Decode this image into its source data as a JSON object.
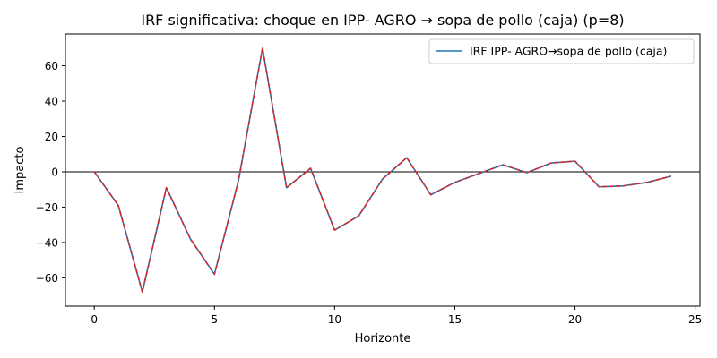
{
  "chart_data": {
    "type": "line",
    "title": "IRF significativa: choque en IPP- AGRO → sopa de pollo (caja) (p=8)",
    "xlabel": "Horizonte",
    "ylabel": "Impacto",
    "xlim": [
      -1.2,
      25.2
    ],
    "ylim": [
      -76,
      78
    ],
    "x_ticks": [
      0,
      5,
      10,
      15,
      20,
      25
    ],
    "y_ticks": [
      -60,
      -40,
      -20,
      0,
      20,
      40,
      60
    ],
    "y_tick_labels": [
      "−60",
      "−40",
      "−20",
      "0",
      "20",
      "40",
      "60"
    ],
    "zero_line": true,
    "grid": false,
    "legend_position": "top-right",
    "x": [
      0,
      1,
      2,
      3,
      4,
      5,
      6,
      7,
      8,
      9,
      10,
      11,
      12,
      13,
      14,
      15,
      16,
      17,
      18,
      19,
      20,
      21,
      22,
      23,
      24
    ],
    "series": [
      {
        "name": "IRF IPP- AGRO→sopa de pollo (caja)",
        "color": "#1f77b4",
        "style": "solid",
        "values": [
          0,
          -19,
          -68,
          -9,
          -38,
          -58,
          -5,
          70,
          -9,
          2,
          -33,
          -25,
          -4,
          8,
          -13,
          -6,
          -1,
          4,
          -0.5,
          5,
          6,
          -8.5,
          -8,
          -6,
          -2.5
        ]
      },
      {
        "color": "#d62728",
        "style": "dashed",
        "values": [
          0,
          -19,
          -68,
          -9,
          -38,
          -58,
          -5,
          70,
          -9,
          2,
          -33,
          -25,
          -4,
          8,
          -13,
          -6,
          -1,
          4,
          -0.5,
          5,
          6,
          -8.5,
          -8,
          -6,
          -2.5
        ]
      }
    ]
  }
}
